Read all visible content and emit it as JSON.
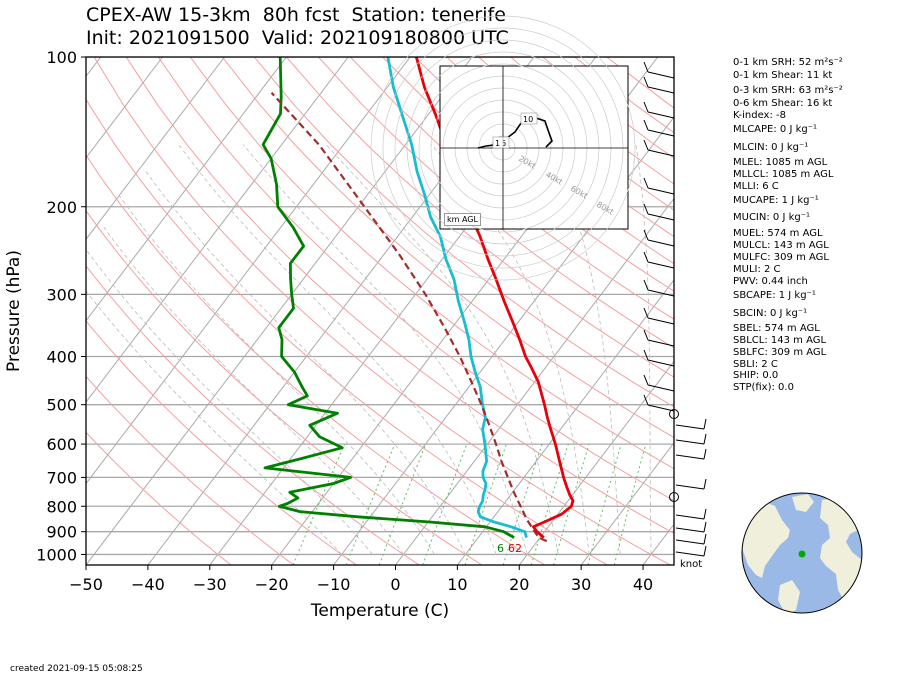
{
  "title": {
    "line1": "CPEX-AW 15-3km  80h fcst  Station: tenerife",
    "line2": "Init: 2021091500  Valid: 202109180800 UTC"
  },
  "created": "created 2021-09-15 05:08:25",
  "chart_data": {
    "type": "line",
    "subtype": "skew-T log-p",
    "xlabel": "Temperature (C)",
    "ylabel": "Pressure (hPa)",
    "xlim": [
      -50,
      45
    ],
    "ylim": [
      1050,
      100
    ],
    "y_scale": "log",
    "x_ticks": [
      "−50",
      "−40",
      "−30",
      "−20",
      "−10",
      "0",
      "10",
      "20",
      "30",
      "40"
    ],
    "y_ticks": [
      "100",
      "200",
      "300",
      "400",
      "500",
      "600",
      "700",
      "800",
      "900",
      "1000"
    ],
    "surface_dewpoint_label": "6",
    "surface_temp_label": "62",
    "series": [
      {
        "color": "#e8000b",
        "points": [
          [
            925,
            20.6
          ],
          [
            900,
            18.8
          ],
          [
            880,
            17.6
          ],
          [
            860,
            18.8
          ],
          [
            830,
            20.6
          ],
          [
            800,
            21.2
          ],
          [
            780,
            20.8
          ],
          [
            760,
            19.6
          ],
          [
            730,
            18.0
          ],
          [
            700,
            16.4
          ],
          [
            650,
            13.8
          ],
          [
            600,
            11.0
          ],
          [
            560,
            8.4
          ],
          [
            530,
            6.4
          ],
          [
            500,
            4.4
          ],
          [
            450,
            0.6
          ],
          [
            420,
            -2.4
          ],
          [
            400,
            -4.6
          ],
          [
            370,
            -7.6
          ],
          [
            340,
            -11.0
          ],
          [
            310,
            -14.8
          ],
          [
            280,
            -18.8
          ],
          [
            255,
            -22.6
          ],
          [
            230,
            -26.6
          ],
          [
            210,
            -30.4
          ],
          [
            190,
            -34.4
          ],
          [
            170,
            -38.6
          ],
          [
            150,
            -43.4
          ],
          [
            130,
            -49.0
          ],
          [
            115,
            -54.0
          ],
          [
            100,
            -59.0
          ]
        ]
      },
      {
        "color": "#17becf",
        "points": [
          [
            925,
            17.8
          ],
          [
            900,
            16.8
          ],
          [
            880,
            14.0
          ],
          [
            860,
            10.6
          ],
          [
            840,
            7.8
          ],
          [
            820,
            6.8
          ],
          [
            800,
            6.4
          ],
          [
            780,
            6.2
          ],
          [
            760,
            5.6
          ],
          [
            740,
            5.2
          ],
          [
            720,
            4.6
          ],
          [
            700,
            3.4
          ],
          [
            680,
            2.6
          ],
          [
            650,
            2.0
          ],
          [
            620,
            0.6
          ],
          [
            600,
            -0.4
          ],
          [
            560,
            -2.6
          ],
          [
            530,
            -3.6
          ],
          [
            500,
            -5.6
          ],
          [
            460,
            -8.2
          ],
          [
            430,
            -10.8
          ],
          [
            400,
            -13.4
          ],
          [
            370,
            -15.8
          ],
          [
            340,
            -18.8
          ],
          [
            310,
            -22.2
          ],
          [
            280,
            -25.6
          ],
          [
            255,
            -29.4
          ],
          [
            230,
            -33.0
          ],
          [
            210,
            -37.0
          ],
          [
            190,
            -40.6
          ],
          [
            170,
            -44.8
          ],
          [
            150,
            -49.0
          ],
          [
            130,
            -54.4
          ],
          [
            115,
            -59.0
          ],
          [
            100,
            -63.6
          ]
        ]
      },
      {
        "color": "#008000",
        "points": [
          [
            925,
            15.8
          ],
          [
            900,
            13.4
          ],
          [
            880,
            9.8
          ],
          [
            860,
            0.0
          ],
          [
            840,
            -12.0
          ],
          [
            820,
            -22.0
          ],
          [
            800,
            -26.0
          ],
          [
            790,
            -25.0
          ],
          [
            770,
            -24.0
          ],
          [
            750,
            -26.0
          ],
          [
            720,
            -20.0
          ],
          [
            700,
            -18.0
          ],
          [
            670,
            -33.0
          ],
          [
            640,
            -28.0
          ],
          [
            610,
            -23.0
          ],
          [
            580,
            -28.0
          ],
          [
            550,
            -31.0
          ],
          [
            520,
            -28.0
          ],
          [
            500,
            -37.0
          ],
          [
            480,
            -35.0
          ],
          [
            460,
            -37.0
          ],
          [
            430,
            -40.0
          ],
          [
            400,
            -44.0
          ],
          [
            370,
            -46.0
          ],
          [
            350,
            -48.0
          ],
          [
            320,
            -48.0
          ],
          [
            300,
            -50.0
          ],
          [
            280,
            -52.0
          ],
          [
            260,
            -54.0
          ],
          [
            240,
            -54.0
          ],
          [
            220,
            -58.0
          ],
          [
            200,
            -63.0
          ],
          [
            180,
            -66.0
          ],
          [
            160,
            -70.0
          ],
          [
            150,
            -73.0
          ],
          [
            130,
            -74.0
          ],
          [
            120,
            -76.0
          ],
          [
            100,
            -81.0
          ]
        ]
      },
      {
        "color": "#a52a2a",
        "dashed": true,
        "points": [
          [
            940,
            21.5
          ],
          [
            925,
            19.8
          ],
          [
            900,
            18.4
          ],
          [
            850,
            15.6
          ],
          [
            800,
            13.0
          ],
          [
            750,
            10.2
          ],
          [
            700,
            7.4
          ],
          [
            650,
            4.4
          ],
          [
            600,
            1.4
          ],
          [
            550,
            -2.0
          ],
          [
            500,
            -5.8
          ],
          [
            450,
            -10.2
          ],
          [
            400,
            -15.2
          ],
          [
            350,
            -21.2
          ],
          [
            300,
            -28.4
          ],
          [
            250,
            -37.4
          ],
          [
            200,
            -49.0
          ],
          [
            150,
            -64.0
          ],
          [
            118,
            -78.0
          ]
        ]
      }
    ],
    "hodograph": {
      "ring_labels": [
        "20kt",
        "40kt",
        "60kt",
        "80kt"
      ],
      "height_labels": [
        "10",
        "6",
        "1"
      ],
      "units_label": "km AGL"
    },
    "wind_barb_units": "knot"
  },
  "indices": [
    {
      "name": "srh01",
      "label": "0-1 km SRH: 52 m²s⁻²"
    },
    {
      "name": "shear01",
      "label": "0-1 km Shear: 11 kt"
    },
    {
      "name": "srh03",
      "label": "0-3 km SRH: 63 m²s⁻²"
    },
    {
      "name": "shear06",
      "label": "0-6 km Shear: 16 kt"
    },
    {
      "name": "kindex",
      "label": "K-index: -8"
    },
    {
      "name": "mlcape",
      "label": "MLCAPE: 0 J kg⁻¹"
    },
    {
      "name": "mlcin",
      "label": "MLCIN: 0 J kg⁻¹"
    },
    {
      "name": "mlel",
      "label": "MLEL: 1085 m AGL"
    },
    {
      "name": "mllcl",
      "label": "MLLCL: 1085 m AGL"
    },
    {
      "name": "mlli",
      "label": "MLLI: 6 C"
    },
    {
      "name": "mucape",
      "label": "MUCAPE: 1 J kg⁻¹"
    },
    {
      "name": "mucin",
      "label": "MUCIN: 0 J kg⁻¹"
    },
    {
      "name": "muel",
      "label": "MUEL: 574 m AGL"
    },
    {
      "name": "mulcl",
      "label": "MULCL: 143 m AGL"
    },
    {
      "name": "mulfc",
      "label": "MULFC: 309 m AGL"
    },
    {
      "name": "muli",
      "label": "MULI: 2 C"
    },
    {
      "name": "pwv",
      "label": "PWV: 0.44 inch"
    },
    {
      "name": "sbcape",
      "label": "SBCAPE: 1 J kg⁻¹"
    },
    {
      "name": "sbcin",
      "label": "SBCIN: 0 J kg⁻¹"
    },
    {
      "name": "sbel",
      "label": "SBEL: 574 m AGL"
    },
    {
      "name": "sblcl",
      "label": "SBLCL: 143 m AGL"
    },
    {
      "name": "sblfc",
      "label": "SBLFC: 309 m AGL"
    },
    {
      "name": "sbli",
      "label": "SBLI: 2 C"
    },
    {
      "name": "ship",
      "label": "SHIP: 0.0"
    },
    {
      "name": "stp",
      "label": "STP(fix): 0.0"
    }
  ],
  "colors": {
    "temperature": "#e8000b",
    "dewpoint": "#008000",
    "wetbulb": "#17becf",
    "parcel": "#a52a2a",
    "dry_adiabat": "#f4a0a0",
    "moist_adiabat": "#bbbbbb",
    "mixing_ratio": "#66bb66",
    "isotherm": "#aaaaaa",
    "ocean": "#9ab9e6",
    "land": "#efefdc",
    "station_marker": "#00aa00"
  }
}
